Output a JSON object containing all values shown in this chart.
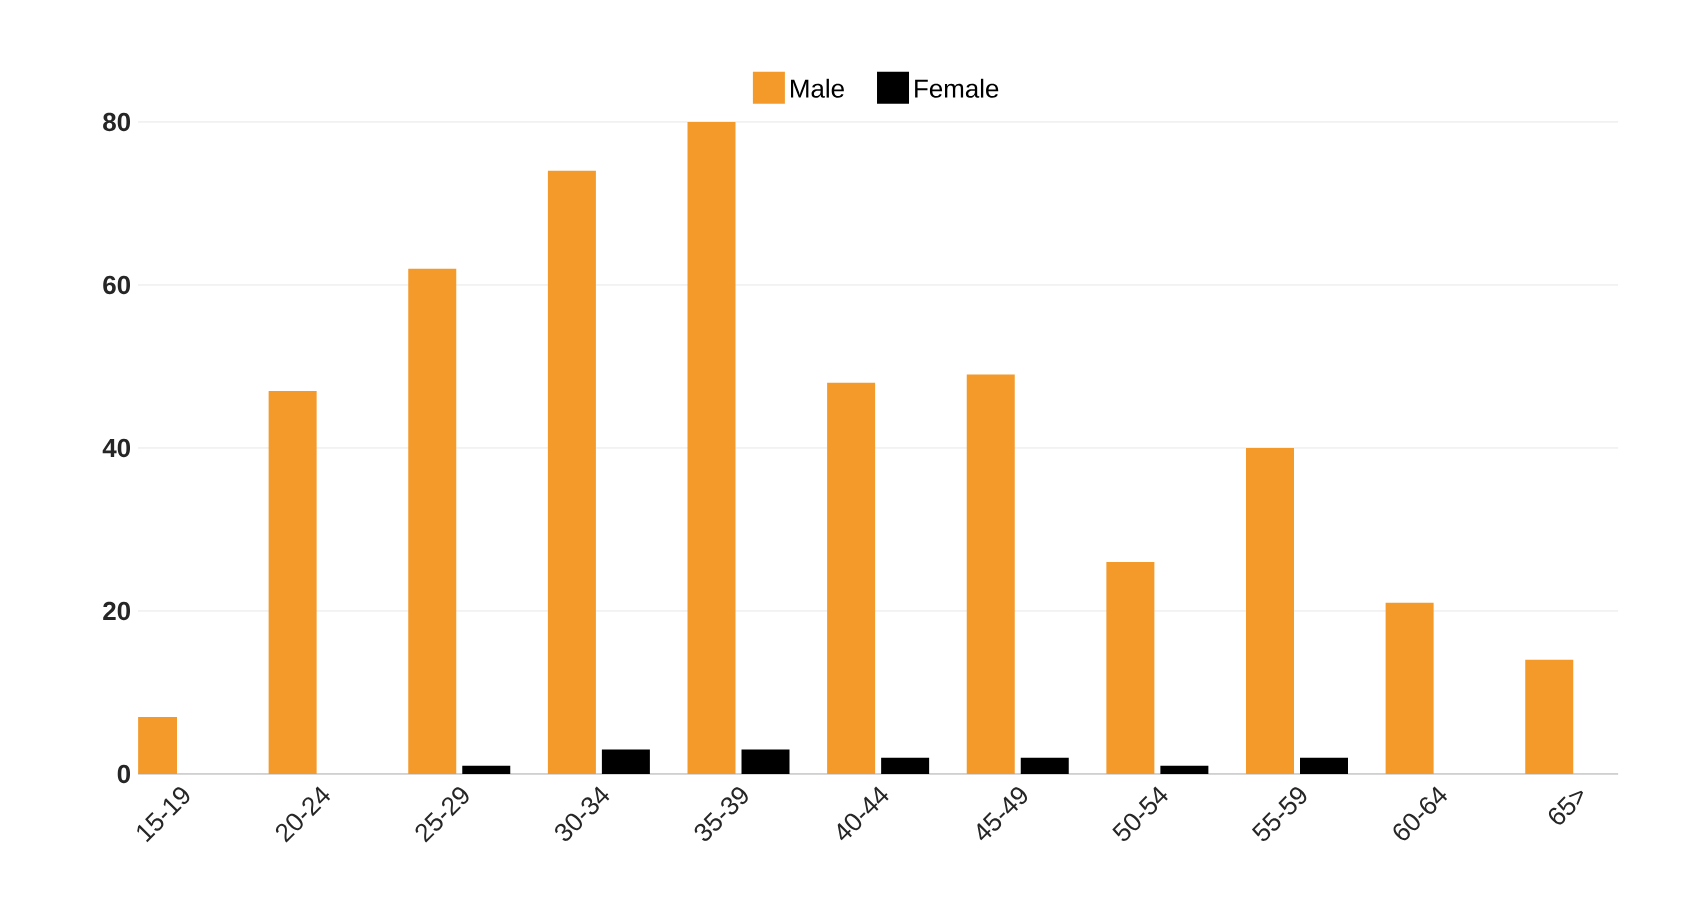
{
  "chart_data": {
    "type": "bar",
    "categories": [
      "15-19",
      "20-24",
      "25-29",
      "30-34",
      "35-39",
      "40-44",
      "45-49",
      "50-54",
      "55-59",
      "60-64",
      "65>"
    ],
    "series": [
      {
        "name": "Male",
        "color": "#f39a2b",
        "values": [
          7,
          47,
          62,
          74,
          80,
          48,
          49,
          26,
          40,
          21,
          14
        ]
      },
      {
        "name": "Female",
        "color": "#000000",
        "values": [
          0,
          0,
          1,
          3,
          3,
          2,
          2,
          1,
          2,
          0,
          0
        ]
      }
    ],
    "ylim": [
      0,
      80
    ],
    "yticks": [
      0,
      20,
      40,
      60,
      80
    ],
    "grid": "y",
    "legend": "top"
  }
}
